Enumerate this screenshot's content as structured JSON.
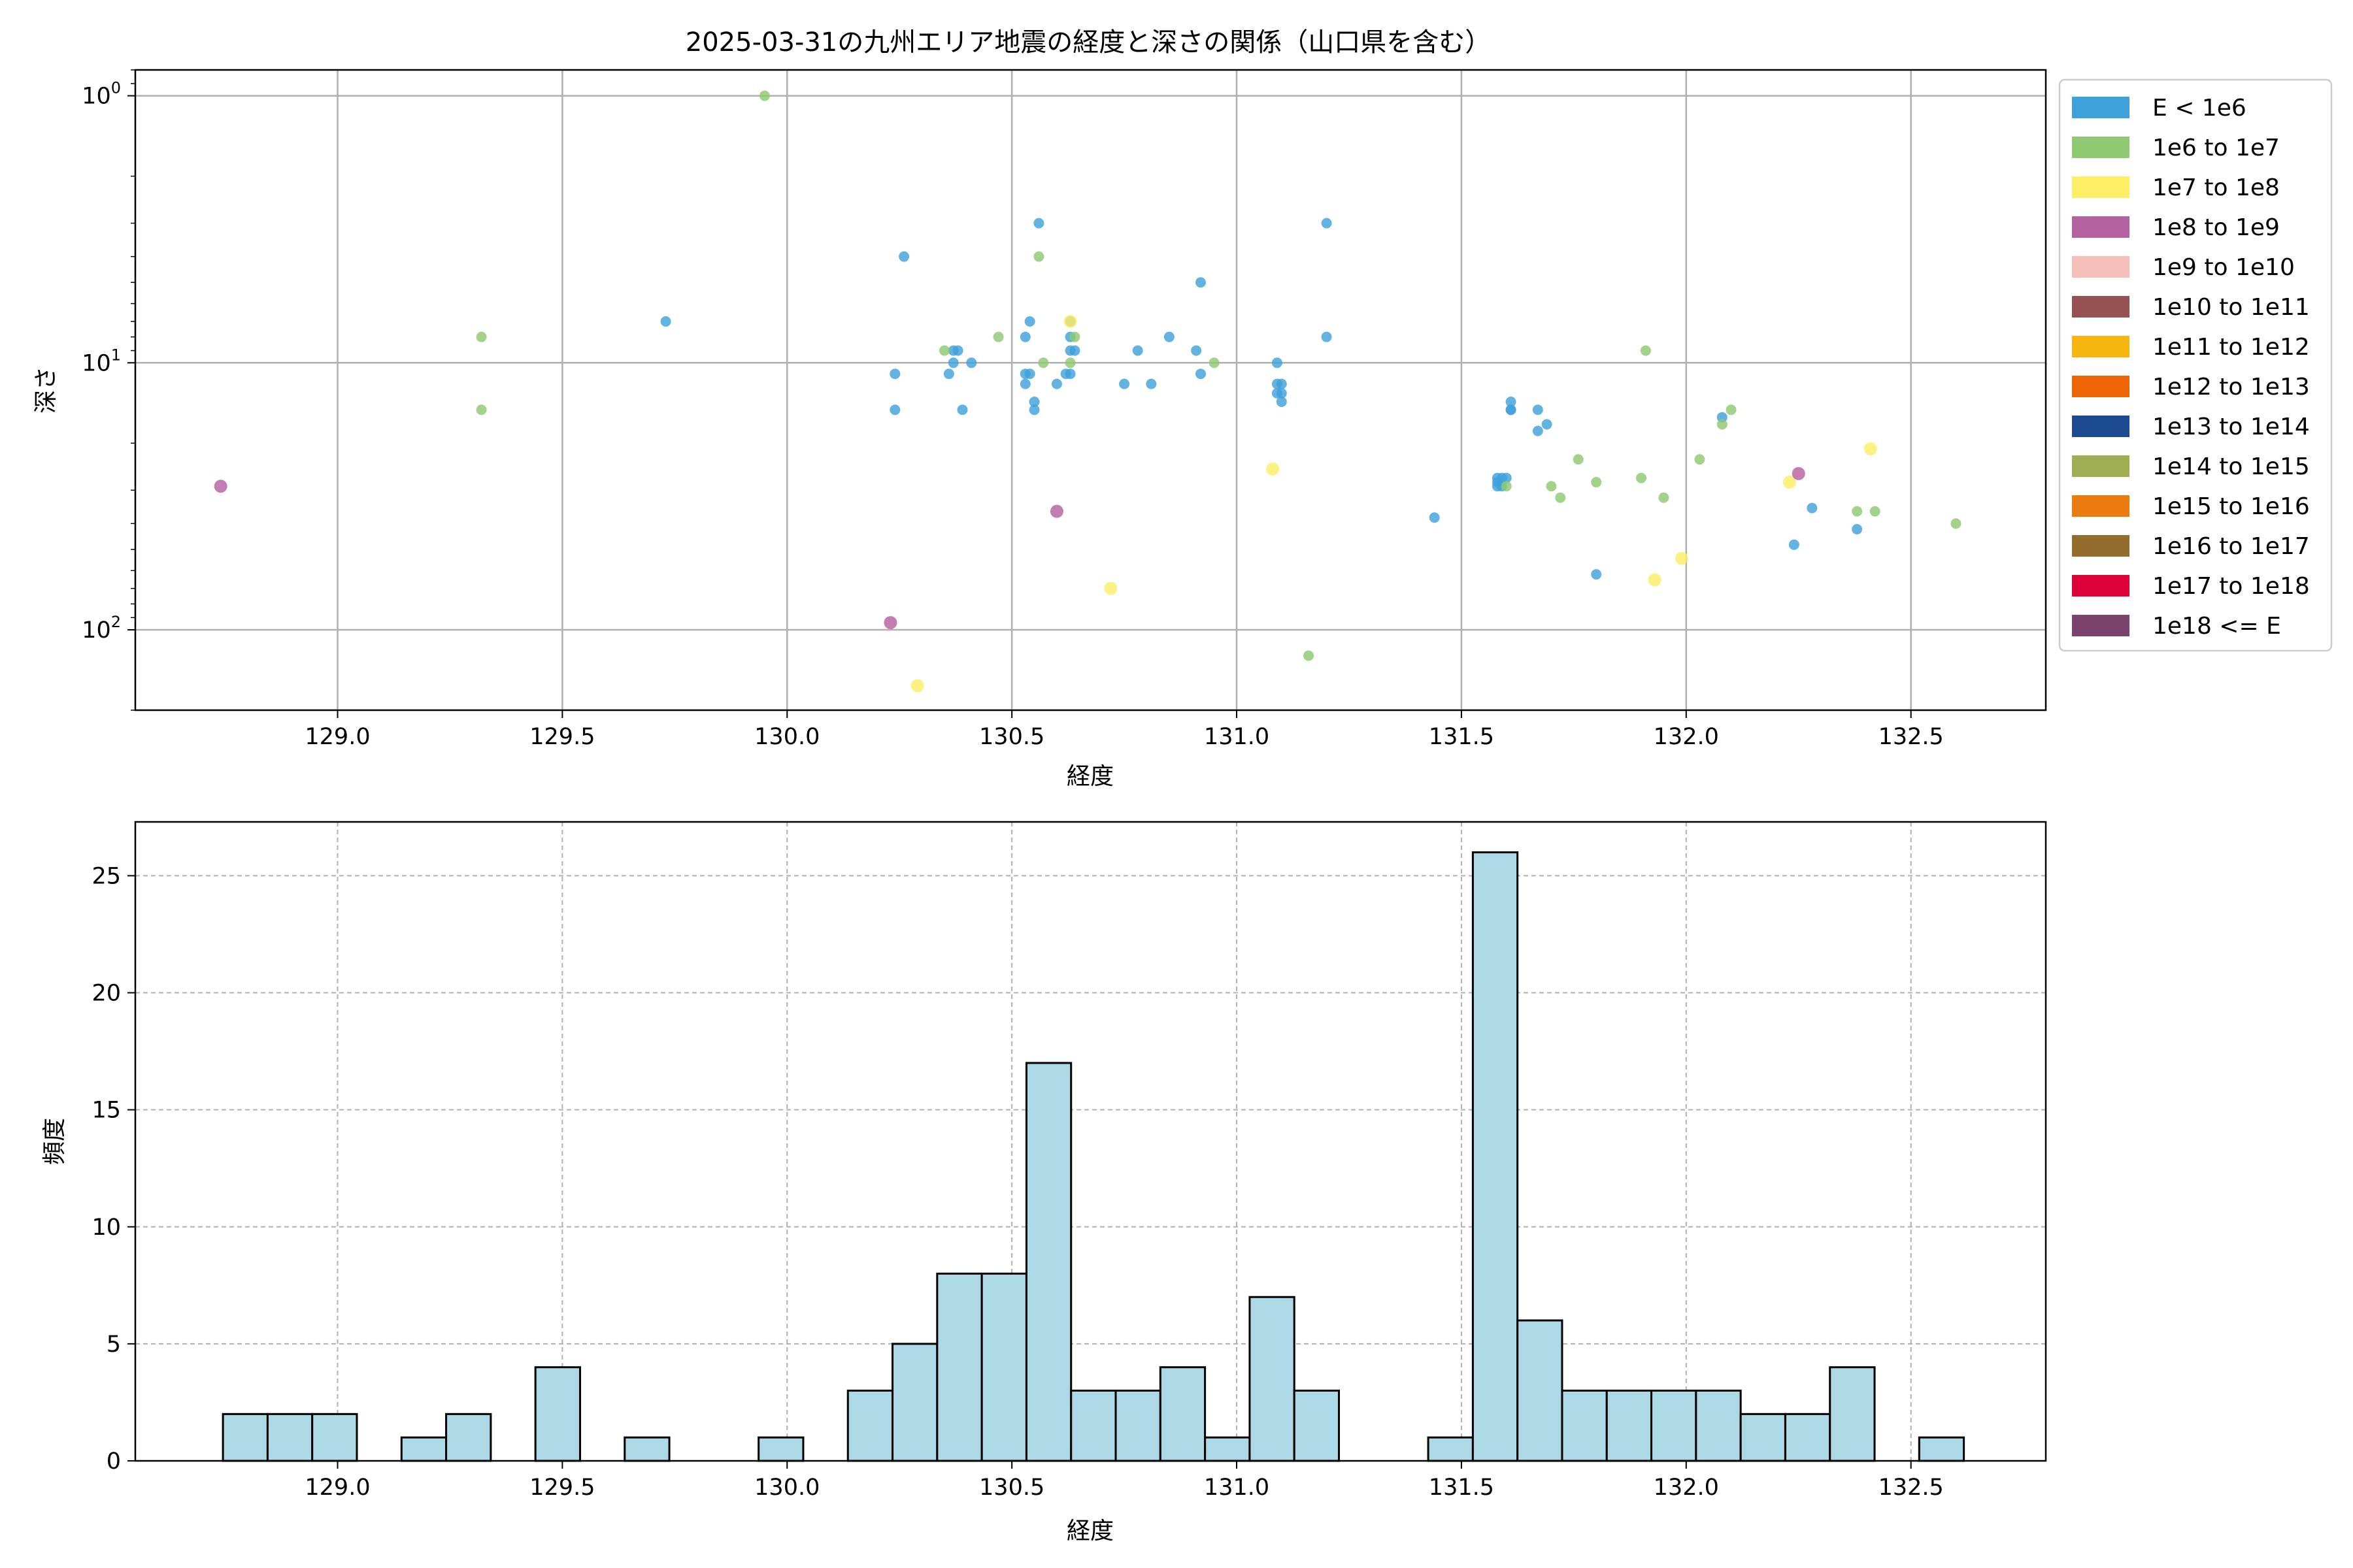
{
  "chart_data": [
    {
      "type": "scatter",
      "title": "2025-03-31の九州エリア地震の経度と深さの関係（山口県を含む）",
      "xlabel": "経度",
      "ylabel": "深さ",
      "yscale": "log",
      "yinverted": true,
      "xlim": [
        128.55,
        132.8
      ],
      "ylim": [
        200,
        0.8
      ],
      "xticks": [
        129.0,
        129.5,
        130.0,
        130.5,
        131.0,
        131.5,
        132.0,
        132.5
      ],
      "xtick_labels": [
        "129.0",
        "129.5",
        "130.0",
        "130.5",
        "131.0",
        "131.5",
        "132.0",
        "132.5"
      ],
      "yticks": [
        {
          "value": 1,
          "base": "10",
          "exp": "0"
        },
        {
          "value": 10,
          "base": "10",
          "exp": "1"
        },
        {
          "value": 100,
          "base": "10",
          "exp": "2"
        }
      ],
      "grid": true,
      "legend": {
        "placement": "outside-right",
        "entries": [
          {
            "label": "E < 1e6",
            "color": "#3fa1dc"
          },
          {
            "label": "1e6 to 1e7",
            "color": "#8fc971"
          },
          {
            "label": "1e7 to 1e8",
            "color": "#fdee65"
          },
          {
            "label": "1e8 to 1e9",
            "color": "#b4629f"
          },
          {
            "label": "1e9 to 1e10",
            "color": "#f3bfb8"
          },
          {
            "label": "1e10 to 1e11",
            "color": "#965252"
          },
          {
            "label": "1e11 to 1e12",
            "color": "#f7b510"
          },
          {
            "label": "1e12 to 1e13",
            "color": "#ed6407"
          },
          {
            "label": "1e13 to 1e14",
            "color": "#1b4a91"
          },
          {
            "label": "1e14 to 1e15",
            "color": "#9fad53"
          },
          {
            "label": "1e15 to 1e16",
            "color": "#ea7c0f"
          },
          {
            "label": "1e16 to 1e17",
            "color": "#946c2c"
          },
          {
            "label": "1e17 to 1e18",
            "color": "#dc0137"
          },
          {
            "label": "1e18 <= E",
            "color": "#7b426d"
          }
        ]
      },
      "series": [
        {
          "name": "E < 1e6",
          "points": [
            [
              129.73,
              7
            ],
            [
              130.26,
              4
            ],
            [
              130.24,
              11
            ],
            [
              130.24,
              15
            ],
            [
              130.37,
              9
            ],
            [
              130.38,
              9
            ],
            [
              130.37,
              10
            ],
            [
              130.36,
              11
            ],
            [
              130.39,
              15
            ],
            [
              130.41,
              10
            ],
            [
              130.53,
              8
            ],
            [
              130.54,
              7
            ],
            [
              130.53,
              11
            ],
            [
              130.54,
              11
            ],
            [
              130.53,
              12
            ],
            [
              130.55,
              14
            ],
            [
              130.55,
              15
            ],
            [
              130.56,
              3
            ],
            [
              130.6,
              12
            ],
            [
              130.63,
              7
            ],
            [
              130.63,
              8
            ],
            [
              130.63,
              9
            ],
            [
              130.64,
              9
            ],
            [
              130.63,
              11
            ],
            [
              130.62,
              11
            ],
            [
              130.78,
              9
            ],
            [
              130.75,
              12
            ],
            [
              130.81,
              12
            ],
            [
              130.85,
              8
            ],
            [
              130.91,
              9
            ],
            [
              130.92,
              5
            ],
            [
              130.92,
              11
            ],
            [
              131.09,
              10
            ],
            [
              131.09,
              12
            ],
            [
              131.1,
              12
            ],
            [
              131.1,
              13
            ],
            [
              131.09,
              13
            ],
            [
              131.1,
              14
            ],
            [
              131.2,
              3
            ],
            [
              131.2,
              8
            ],
            [
              131.44,
              38
            ],
            [
              131.58,
              27
            ],
            [
              131.59,
              27
            ],
            [
              131.58,
              28
            ],
            [
              131.59,
              29
            ],
            [
              131.6,
              27
            ],
            [
              131.58,
              29
            ],
            [
              131.61,
              14
            ],
            [
              131.61,
              15
            ],
            [
              131.61,
              15
            ],
            [
              131.67,
              15
            ],
            [
              131.67,
              18
            ],
            [
              131.69,
              17
            ],
            [
              131.8,
              62
            ],
            [
              132.08,
              16
            ],
            [
              132.24,
              48
            ],
            [
              132.28,
              35
            ],
            [
              132.38,
              42
            ]
          ]
        },
        {
          "name": "1e6 to 1e7",
          "points": [
            [
              129.32,
              8
            ],
            [
              129.32,
              15
            ],
            [
              129.95,
              1
            ],
            [
              130.35,
              9
            ],
            [
              130.47,
              8
            ],
            [
              130.56,
              4
            ],
            [
              130.57,
              10
            ],
            [
              130.63,
              10
            ],
            [
              130.64,
              8
            ],
            [
              130.95,
              10
            ],
            [
              131.16,
              125
            ],
            [
              131.6,
              29
            ],
            [
              131.7,
              29
            ],
            [
              131.72,
              32
            ],
            [
              131.76,
              23
            ],
            [
              131.8,
              28
            ],
            [
              131.9,
              27
            ],
            [
              131.91,
              9
            ],
            [
              131.95,
              32
            ],
            [
              132.03,
              23
            ],
            [
              132.08,
              17
            ],
            [
              132.1,
              15
            ],
            [
              132.38,
              36
            ],
            [
              132.42,
              36
            ],
            [
              132.6,
              40
            ]
          ]
        },
        {
          "name": "1e7 to 1e8",
          "points": [
            [
              130.29,
              162
            ],
            [
              130.63,
              7
            ],
            [
              130.72,
              70
            ],
            [
              131.08,
              25
            ],
            [
              131.93,
              65
            ],
            [
              131.99,
              54
            ],
            [
              132.23,
              28
            ],
            [
              132.41,
              21
            ]
          ]
        },
        {
          "name": "1e8 to 1e9",
          "points": [
            [
              128.74,
              29
            ],
            [
              130.23,
              94
            ],
            [
              130.6,
              36
            ],
            [
              132.25,
              26
            ]
          ]
        }
      ]
    },
    {
      "type": "bar",
      "subtype": "histogram",
      "xlabel": "経度",
      "ylabel": "頻度",
      "xlim": [
        128.55,
        132.8
      ],
      "ylim": [
        0,
        27.3
      ],
      "bin_start": 128.745,
      "bin_width": 0.0993,
      "counts": [
        2,
        2,
        2,
        0,
        1,
        2,
        0,
        4,
        0,
        1,
        0,
        0,
        1,
        0,
        3,
        5,
        8,
        8,
        17,
        3,
        3,
        4,
        1,
        7,
        3,
        0,
        0,
        1,
        26,
        6,
        3,
        3,
        3,
        3,
        2,
        2,
        4,
        0,
        1
      ],
      "color": "#add8e6",
      "edgecolor": "#000000",
      "xticks": [
        129.0,
        129.5,
        130.0,
        130.5,
        131.0,
        131.5,
        132.0,
        132.5
      ],
      "xtick_labels": [
        "129.0",
        "129.5",
        "130.0",
        "130.5",
        "131.0",
        "131.5",
        "132.0",
        "132.5"
      ],
      "yticks": [
        0,
        5,
        10,
        15,
        20,
        25
      ],
      "ytick_labels": [
        "0",
        "5",
        "10",
        "15",
        "20",
        "25"
      ],
      "grid": "dashed"
    }
  ]
}
